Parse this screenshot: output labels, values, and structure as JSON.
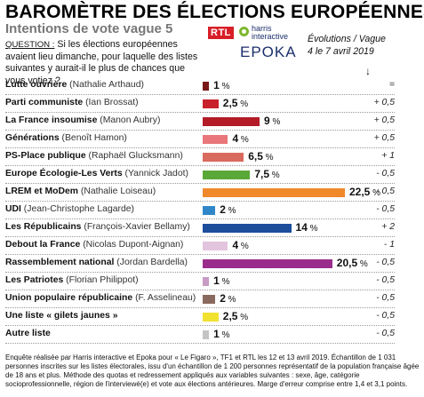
{
  "header": {
    "title": "BAROMÈTRE DES ÉLECTIONS EUROPÉENNES",
    "subtitle": "Intentions de vote vague 5",
    "question_label": "QUESTION :",
    "question_text": "Si les élections européennes avaient lieu dimanche, pour laquelle des listes suivantes y aurait-il le plus de chances que vous votiez ?",
    "evolution_note": "Évolutions / Vague 4 le 7 avril 2019",
    "arrow": "↓"
  },
  "logos": {
    "rtl": "RTL",
    "harris": "harris interactive",
    "epoka": "EPOKA"
  },
  "chart_data": {
    "type": "bar",
    "orientation": "horizontal",
    "unit": "%",
    "xlim": [
      0,
      22.5
    ],
    "categories": [
      "Lutte ouvrière (Nathalie Arthaud)",
      "Parti communiste (Ian Brossat)",
      "La France insoumise (Manon Aubry)",
      "Générations (Benoît Hamon)",
      "PS-Place publique (Raphaël Glucksmann)",
      "Europe Écologie-Les Verts (Yannick Jadot)",
      "LREM et MoDem (Nathalie Loiseau)",
      "UDI (Jean-Christophe Lagarde)",
      "Les Républicains (François-Xavier Bellamy)",
      "Debout la France (Nicolas Dupont-Aignan)",
      "Rassemblement national (Jordan Bardella)",
      "Les Patriotes (Florian Philippot)",
      "Union populaire républicaine (F. Asselineau)",
      "Une liste « gilets jaunes »",
      "Autre liste"
    ],
    "rows": [
      {
        "party": "Lutte ouvrière",
        "candidate": "(Nathalie Arthaud)",
        "value": 1,
        "label": "1",
        "evolution": "=",
        "color": "#7a1818"
      },
      {
        "party": "Parti communiste",
        "candidate": "(Ian Brossat)",
        "value": 2.5,
        "label": "2,5",
        "evolution": "+ 0,5",
        "color": "#c8202a"
      },
      {
        "party": "La France insoumise",
        "candidate": "(Manon Aubry)",
        "value": 9,
        "label": "9",
        "evolution": "+ 0,5",
        "color": "#b31b28"
      },
      {
        "party": "Générations",
        "candidate": "(Benoît Hamon)",
        "value": 4,
        "label": "4",
        "evolution": "+ 0,5",
        "color": "#e8767a"
      },
      {
        "party": "PS-Place publique",
        "candidate": "(Raphaël Glucksmann)",
        "value": 6.5,
        "label": "6,5",
        "evolution": "+ 1",
        "color": "#d96a5e"
      },
      {
        "party": "Europe Écologie-Les Verts",
        "candidate": "(Yannick Jadot)",
        "value": 7.5,
        "label": "7,5",
        "evolution": "- 0,5",
        "color": "#5aa837"
      },
      {
        "party": "LREM et MoDem",
        "candidate": "(Nathalie Loiseau)",
        "value": 22.5,
        "label": "22,5",
        "evolution": "- 0,5",
        "color": "#f0892b"
      },
      {
        "party": "UDI",
        "candidate": "(Jean-Christophe Lagarde)",
        "value": 2,
        "label": "2",
        "evolution": "- 0,5",
        "color": "#2f87c9"
      },
      {
        "party": "Les Républicains",
        "candidate": "(François-Xavier Bellamy)",
        "value": 14,
        "label": "14",
        "evolution": "+ 2",
        "color": "#1d4e9c"
      },
      {
        "party": "Debout la France",
        "candidate": "(Nicolas Dupont-Aignan)",
        "value": 4,
        "label": "4",
        "evolution": "- 1",
        "color": "#e3c4de"
      },
      {
        "party": "Rassemblement national",
        "candidate": "(Jordan Bardella)",
        "value": 20.5,
        "label": "20,5",
        "evolution": "- 0,5",
        "color": "#9a2d8c"
      },
      {
        "party": "Les Patriotes",
        "candidate": "(Florian Philippot)",
        "value": 1,
        "label": "1",
        "evolution": "- 0,5",
        "color": "#c79bc4"
      },
      {
        "party": "Union populaire républicaine",
        "candidate": "(F. Asselineau)",
        "value": 2,
        "label": "2",
        "evolution": "- 0,5",
        "color": "#8a6a5e"
      },
      {
        "party": "Une liste « gilets jaunes »",
        "candidate": "",
        "value": 2.5,
        "label": "2,5",
        "evolution": "- 0,5",
        "color": "#f2e230"
      },
      {
        "party": "Autre liste",
        "candidate": "",
        "value": 1,
        "label": "1",
        "evolution": "- 0,5",
        "color": "#c4c4c4"
      }
    ]
  },
  "footer": {
    "note": "Enquête réalisée par Harris interactive et Epoka pour « Le Figaro », TF1 et RTL les 12 et 13 avril 2019. Échantillon de 1 031 personnes inscrites sur les listes électorales, issu d'un échantillon de 1 200 personnes représentatif de la population française âgée de 18 ans et plus. Méthode des quotas et redressement appliqués aux variables suivantes : sexe, âge, catégorie socioprofessionnelle, région de l'interviewé(e) et vote aux élections antérieures. Marge d'erreur comprise entre 1,4 et 3,1 points."
  }
}
